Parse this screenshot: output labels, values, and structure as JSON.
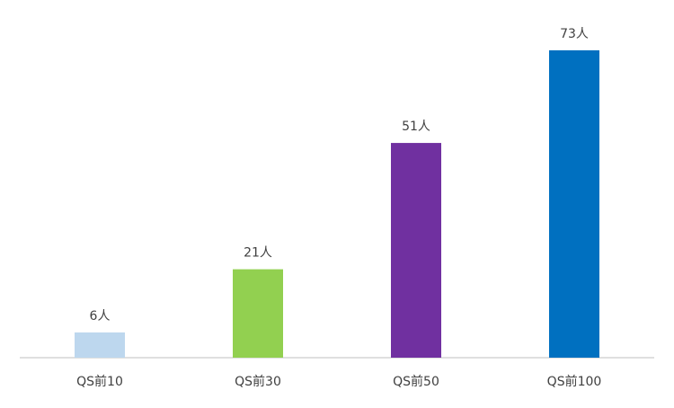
{
  "chart_data": {
    "type": "bar",
    "categories": [
      "QS前10",
      "QS前30",
      "QS前50",
      "QS前100"
    ],
    "values": [
      6,
      21,
      51,
      73
    ],
    "data_labels": [
      "6人",
      "21人",
      "51人",
      "73人"
    ],
    "colors": [
      "#BDD7EE",
      "#92D050",
      "#7030A0",
      "#0070C0"
    ],
    "ylim": [
      0,
      73
    ],
    "grid": false,
    "legend": "none"
  }
}
